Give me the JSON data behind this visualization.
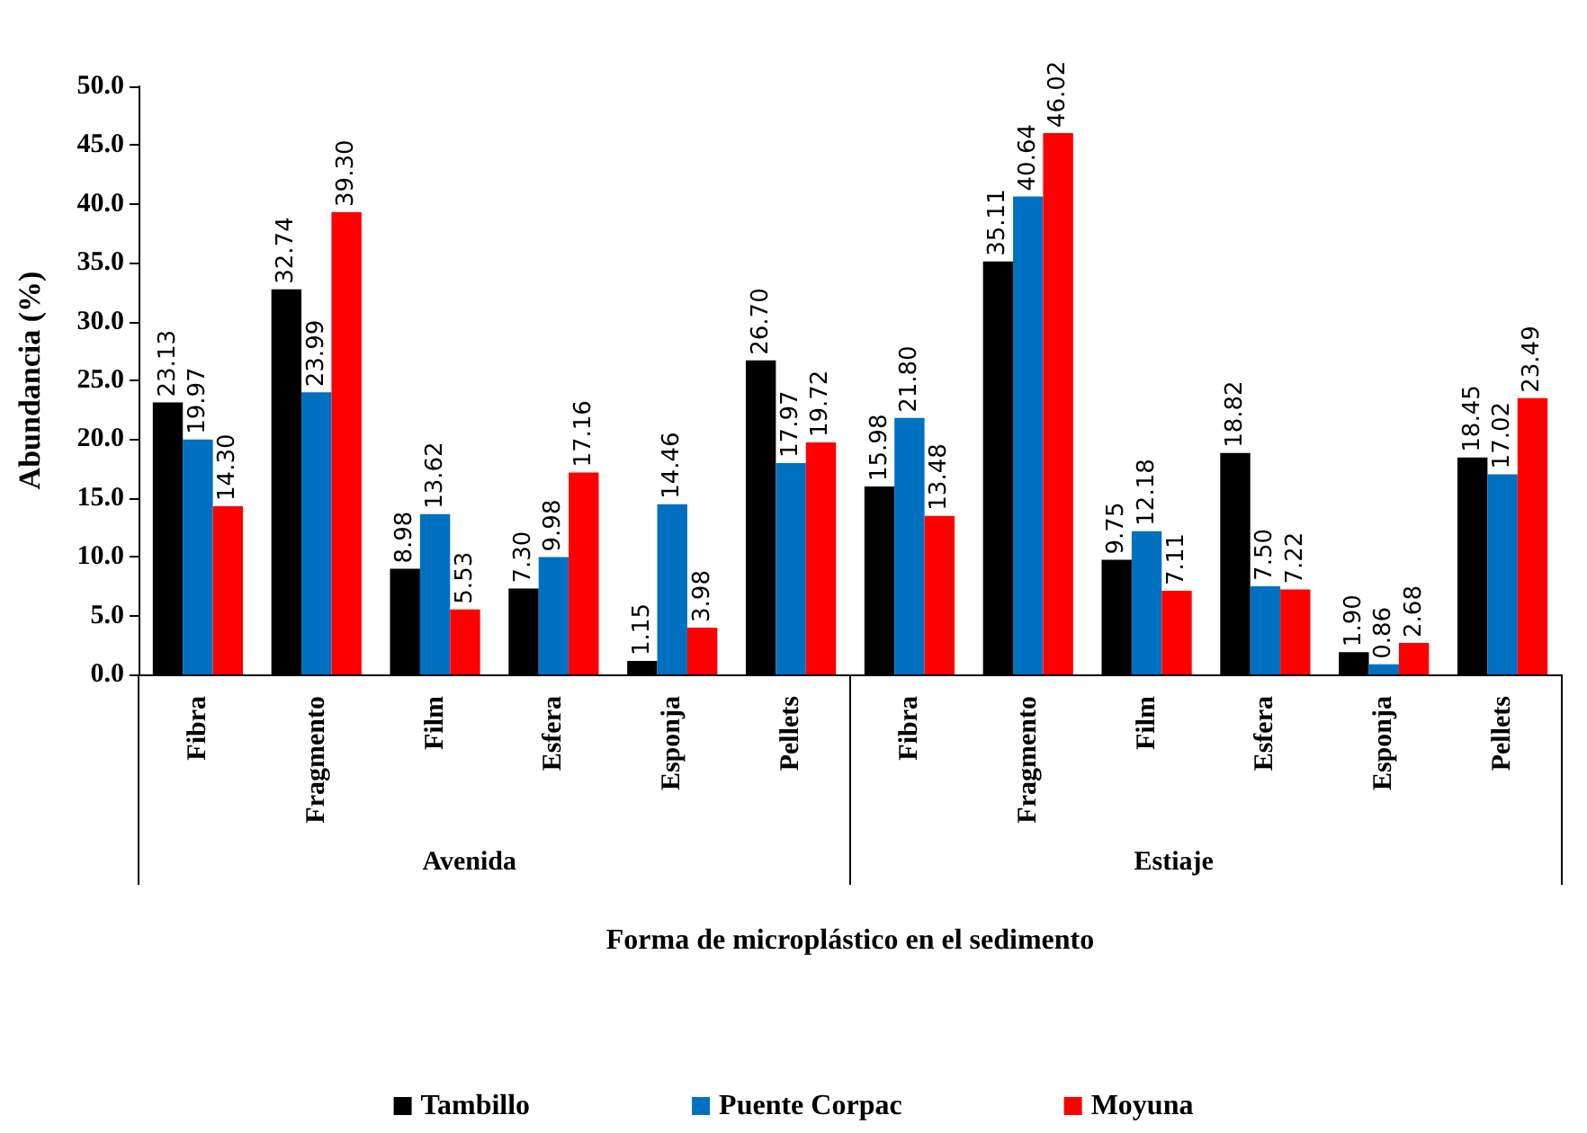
{
  "chart_data": {
    "type": "bar",
    "xlabel": "Forma de microplástico en el sedimento",
    "ylabel": "Abundancia (%)",
    "categories": [
      "Fibra",
      "Fragmento",
      "Film",
      "Esfera",
      "Esponja",
      "Pellets",
      "Fibra",
      "Fragmento",
      "Film",
      "Esfera",
      "Esponja",
      "Pellets"
    ],
    "annotations": [
      "Avenida",
      "Estiaje"
    ],
    "series": [
      {
        "name": "Tambillo",
        "color": "#000000",
        "values": [
          23.13,
          32.74,
          8.98,
          7.3,
          1.15,
          26.7,
          15.98,
          35.11,
          9.75,
          18.82,
          1.9,
          18.45
        ],
        "value_labels": [
          "23.13",
          "32.74",
          "8.98",
          "7.30",
          "1.15",
          "26.70",
          "15.98",
          "35.11",
          "9.75",
          "18.82",
          "1.90",
          "18.45"
        ]
      },
      {
        "name": "Puente Corpac",
        "color": "#0070c0",
        "values": [
          19.97,
          23.99,
          13.62,
          9.98,
          14.46,
          17.97,
          21.8,
          40.64,
          12.18,
          7.5,
          0.86,
          17.02
        ],
        "value_labels": [
          "19.97",
          "23.99",
          "13.62",
          "9.98",
          "14.46",
          "17.97",
          "21.80",
          "40.64",
          "12.18",
          "7.50",
          "0.86",
          "17.02"
        ]
      },
      {
        "name": "Moyuna",
        "color": "#ff0000",
        "values": [
          14.3,
          39.3,
          5.53,
          17.16,
          3.98,
          19.72,
          13.48,
          46.02,
          7.11,
          7.22,
          2.68,
          23.49
        ],
        "value_labels": [
          "14.30",
          "39.30",
          "5.53",
          "17.16",
          "3.98",
          "19.72",
          "13.48",
          "46.02",
          "7.11",
          "7.22",
          "2.68",
          "23.49"
        ]
      }
    ],
    "ylim": [
      0,
      50
    ],
    "yticks": [
      {
        "value": 0,
        "label": "0.0"
      },
      {
        "value": 5,
        "label": "5.0"
      },
      {
        "value": 10,
        "label": "10.0"
      },
      {
        "value": 15,
        "label": "15.0"
      },
      {
        "value": 20,
        "label": "20.0"
      },
      {
        "value": 25,
        "label": "25.0"
      },
      {
        "value": 30,
        "label": "30.0"
      },
      {
        "value": 35,
        "label": "35.0"
      },
      {
        "value": 40,
        "label": "40.0"
      },
      {
        "value": 45,
        "label": "45.0"
      },
      {
        "value": 50,
        "label": "50.0"
      }
    ],
    "grid": false,
    "legend": "bottom"
  }
}
